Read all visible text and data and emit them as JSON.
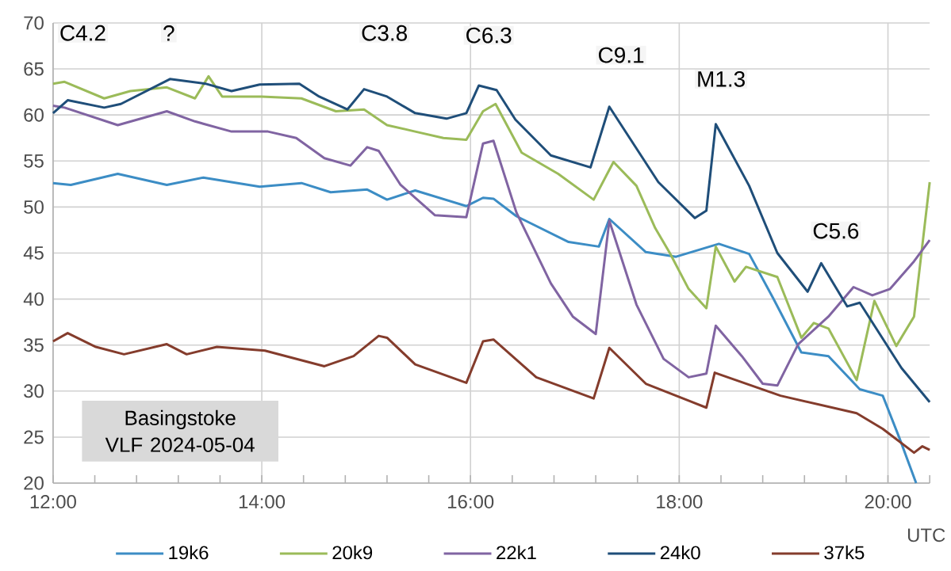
{
  "chart_data": {
    "type": "line",
    "xlabel": "UTC",
    "xlim": [
      12,
      20.4
    ],
    "ylim": [
      20,
      70
    ],
    "xticks": [
      {
        "value": 12,
        "label": "12:00"
      },
      {
        "value": 12.4,
        "label": null
      },
      {
        "value": 12.8,
        "label": null
      },
      {
        "value": 13.2,
        "label": null
      },
      {
        "value": 13.6,
        "label": null
      },
      {
        "value": 14,
        "label": "14:00"
      },
      {
        "value": 14.4,
        "label": null
      },
      {
        "value": 14.8,
        "label": null
      },
      {
        "value": 15.2,
        "label": null
      },
      {
        "value": 15.6,
        "label": null
      },
      {
        "value": 16,
        "label": "16:00"
      },
      {
        "value": 16.4,
        "label": null
      },
      {
        "value": 16.8,
        "label": null
      },
      {
        "value": 17.2,
        "label": null
      },
      {
        "value": 17.6,
        "label": null
      },
      {
        "value": 18,
        "label": "18:00"
      },
      {
        "value": 18.4,
        "label": null
      },
      {
        "value": 18.8,
        "label": null
      },
      {
        "value": 19.2,
        "label": null
      },
      {
        "value": 19.6,
        "label": null
      },
      {
        "value": 20,
        "label": "20:00"
      },
      {
        "value": 20.4,
        "label": null
      }
    ],
    "yticks": [
      20,
      25,
      30,
      35,
      40,
      45,
      50,
      55,
      60,
      65,
      70
    ],
    "grid": true,
    "legend": "bottom",
    "series": [
      {
        "name": "19k6",
        "color": "#3c8dc5",
        "x": [
          12.0,
          12.17,
          12.62,
          13.09,
          13.44,
          13.98,
          14.38,
          14.66,
          15.01,
          15.2,
          15.47,
          15.96,
          16.12,
          16.22,
          16.44,
          16.94,
          17.23,
          17.33,
          17.68,
          17.97,
          18.38,
          18.67,
          18.9,
          19.17,
          19.43,
          19.73,
          19.95,
          20.11,
          20.27
        ],
        "values": [
          52.6,
          52.4,
          53.6,
          52.4,
          53.2,
          52.2,
          52.6,
          51.6,
          51.9,
          50.8,
          51.8,
          50.1,
          51.0,
          50.9,
          49.0,
          46.2,
          45.7,
          48.7,
          45.1,
          44.6,
          46.0,
          44.9,
          40.1,
          34.2,
          33.8,
          30.2,
          29.5,
          24.9,
          20.0
        ]
      },
      {
        "name": "20k9",
        "color": "#9bbb59",
        "x": [
          12.0,
          12.11,
          12.49,
          12.74,
          13.09,
          13.36,
          13.49,
          13.62,
          14.0,
          14.38,
          14.71,
          14.98,
          15.2,
          15.47,
          15.74,
          15.96,
          16.12,
          16.24,
          16.49,
          16.84,
          17.18,
          17.37,
          17.59,
          17.77,
          17.91,
          18.09,
          18.26,
          18.35,
          18.53,
          18.64,
          18.94,
          19.17,
          19.29,
          19.43,
          19.7,
          19.87,
          20.08,
          20.25,
          20.4
        ],
        "values": [
          63.4,
          63.6,
          61.8,
          62.6,
          63.0,
          61.8,
          64.2,
          62.0,
          62.0,
          61.8,
          60.4,
          60.6,
          58.9,
          58.2,
          57.5,
          57.3,
          60.4,
          61.2,
          55.9,
          53.6,
          50.8,
          54.9,
          52.3,
          47.7,
          45.0,
          41.1,
          39.0,
          45.7,
          41.9,
          43.5,
          42.4,
          35.8,
          37.4,
          36.8,
          31.2,
          39.8,
          34.9,
          38.1,
          52.7
        ]
      },
      {
        "name": "22k1",
        "color": "#8064a2",
        "x": [
          12.0,
          12.11,
          12.62,
          13.09,
          13.36,
          13.71,
          14.06,
          14.33,
          14.6,
          14.85,
          15.01,
          15.12,
          15.33,
          15.66,
          15.96,
          16.12,
          16.22,
          16.44,
          16.77,
          16.98,
          17.2,
          17.33,
          17.59,
          17.85,
          18.09,
          18.26,
          18.35,
          18.6,
          18.8,
          18.94,
          19.14,
          19.43,
          19.67,
          19.85,
          20.02,
          20.25,
          20.4
        ],
        "values": [
          61.0,
          60.8,
          58.9,
          60.4,
          59.3,
          58.2,
          58.2,
          57.5,
          55.3,
          54.5,
          56.5,
          56.1,
          52.4,
          49.1,
          48.9,
          56.9,
          57.2,
          49.4,
          41.7,
          38.1,
          36.2,
          48.5,
          39.4,
          33.5,
          31.5,
          31.9,
          37.1,
          33.8,
          30.8,
          30.6,
          35.1,
          38.1,
          41.3,
          40.4,
          41.1,
          44.1,
          46.4
        ]
      },
      {
        "name": "24k0",
        "color": "#1f4e79",
        "x": [
          12.0,
          12.14,
          12.49,
          12.65,
          13.12,
          13.46,
          13.71,
          13.98,
          14.36,
          14.55,
          14.82,
          14.98,
          15.2,
          15.47,
          15.77,
          15.96,
          16.08,
          16.25,
          16.43,
          16.77,
          17.15,
          17.33,
          17.8,
          18.15,
          18.26,
          18.35,
          18.67,
          18.94,
          19.23,
          19.36,
          19.61,
          19.73,
          20.13,
          20.4
        ],
        "values": [
          60.2,
          61.6,
          60.8,
          61.2,
          63.9,
          63.4,
          62.6,
          63.3,
          63.4,
          62.0,
          60.6,
          62.8,
          62.0,
          60.2,
          59.6,
          60.2,
          63.2,
          62.7,
          59.5,
          55.6,
          54.3,
          60.9,
          52.7,
          48.8,
          49.6,
          59.0,
          52.3,
          45.0,
          40.8,
          43.9,
          39.2,
          39.6,
          32.5,
          28.8
        ]
      },
      {
        "name": "37k5",
        "color": "#843c2c",
        "x": [
          12.0,
          12.14,
          12.41,
          12.68,
          13.09,
          13.28,
          13.57,
          14.03,
          14.6,
          14.88,
          15.12,
          15.2,
          15.47,
          15.96,
          16.12,
          16.22,
          16.63,
          17.18,
          17.33,
          17.68,
          18.26,
          18.34,
          18.97,
          19.7,
          19.95,
          20.25,
          20.33,
          20.4
        ],
        "values": [
          35.4,
          36.3,
          34.8,
          34.0,
          35.1,
          34.0,
          34.8,
          34.4,
          32.7,
          33.8,
          36.0,
          35.8,
          32.9,
          30.9,
          35.4,
          35.6,
          31.5,
          29.2,
          34.7,
          30.8,
          28.2,
          32.0,
          29.5,
          27.6,
          25.9,
          23.3,
          24.0,
          23.6
        ]
      }
    ],
    "annotations": [
      "C4.2",
      "?",
      "C3.8",
      "C6.3",
      "C9.1",
      "M1.3",
      "C5.6",
      "Basingstoke VLF 2024-05-04"
    ]
  }
}
